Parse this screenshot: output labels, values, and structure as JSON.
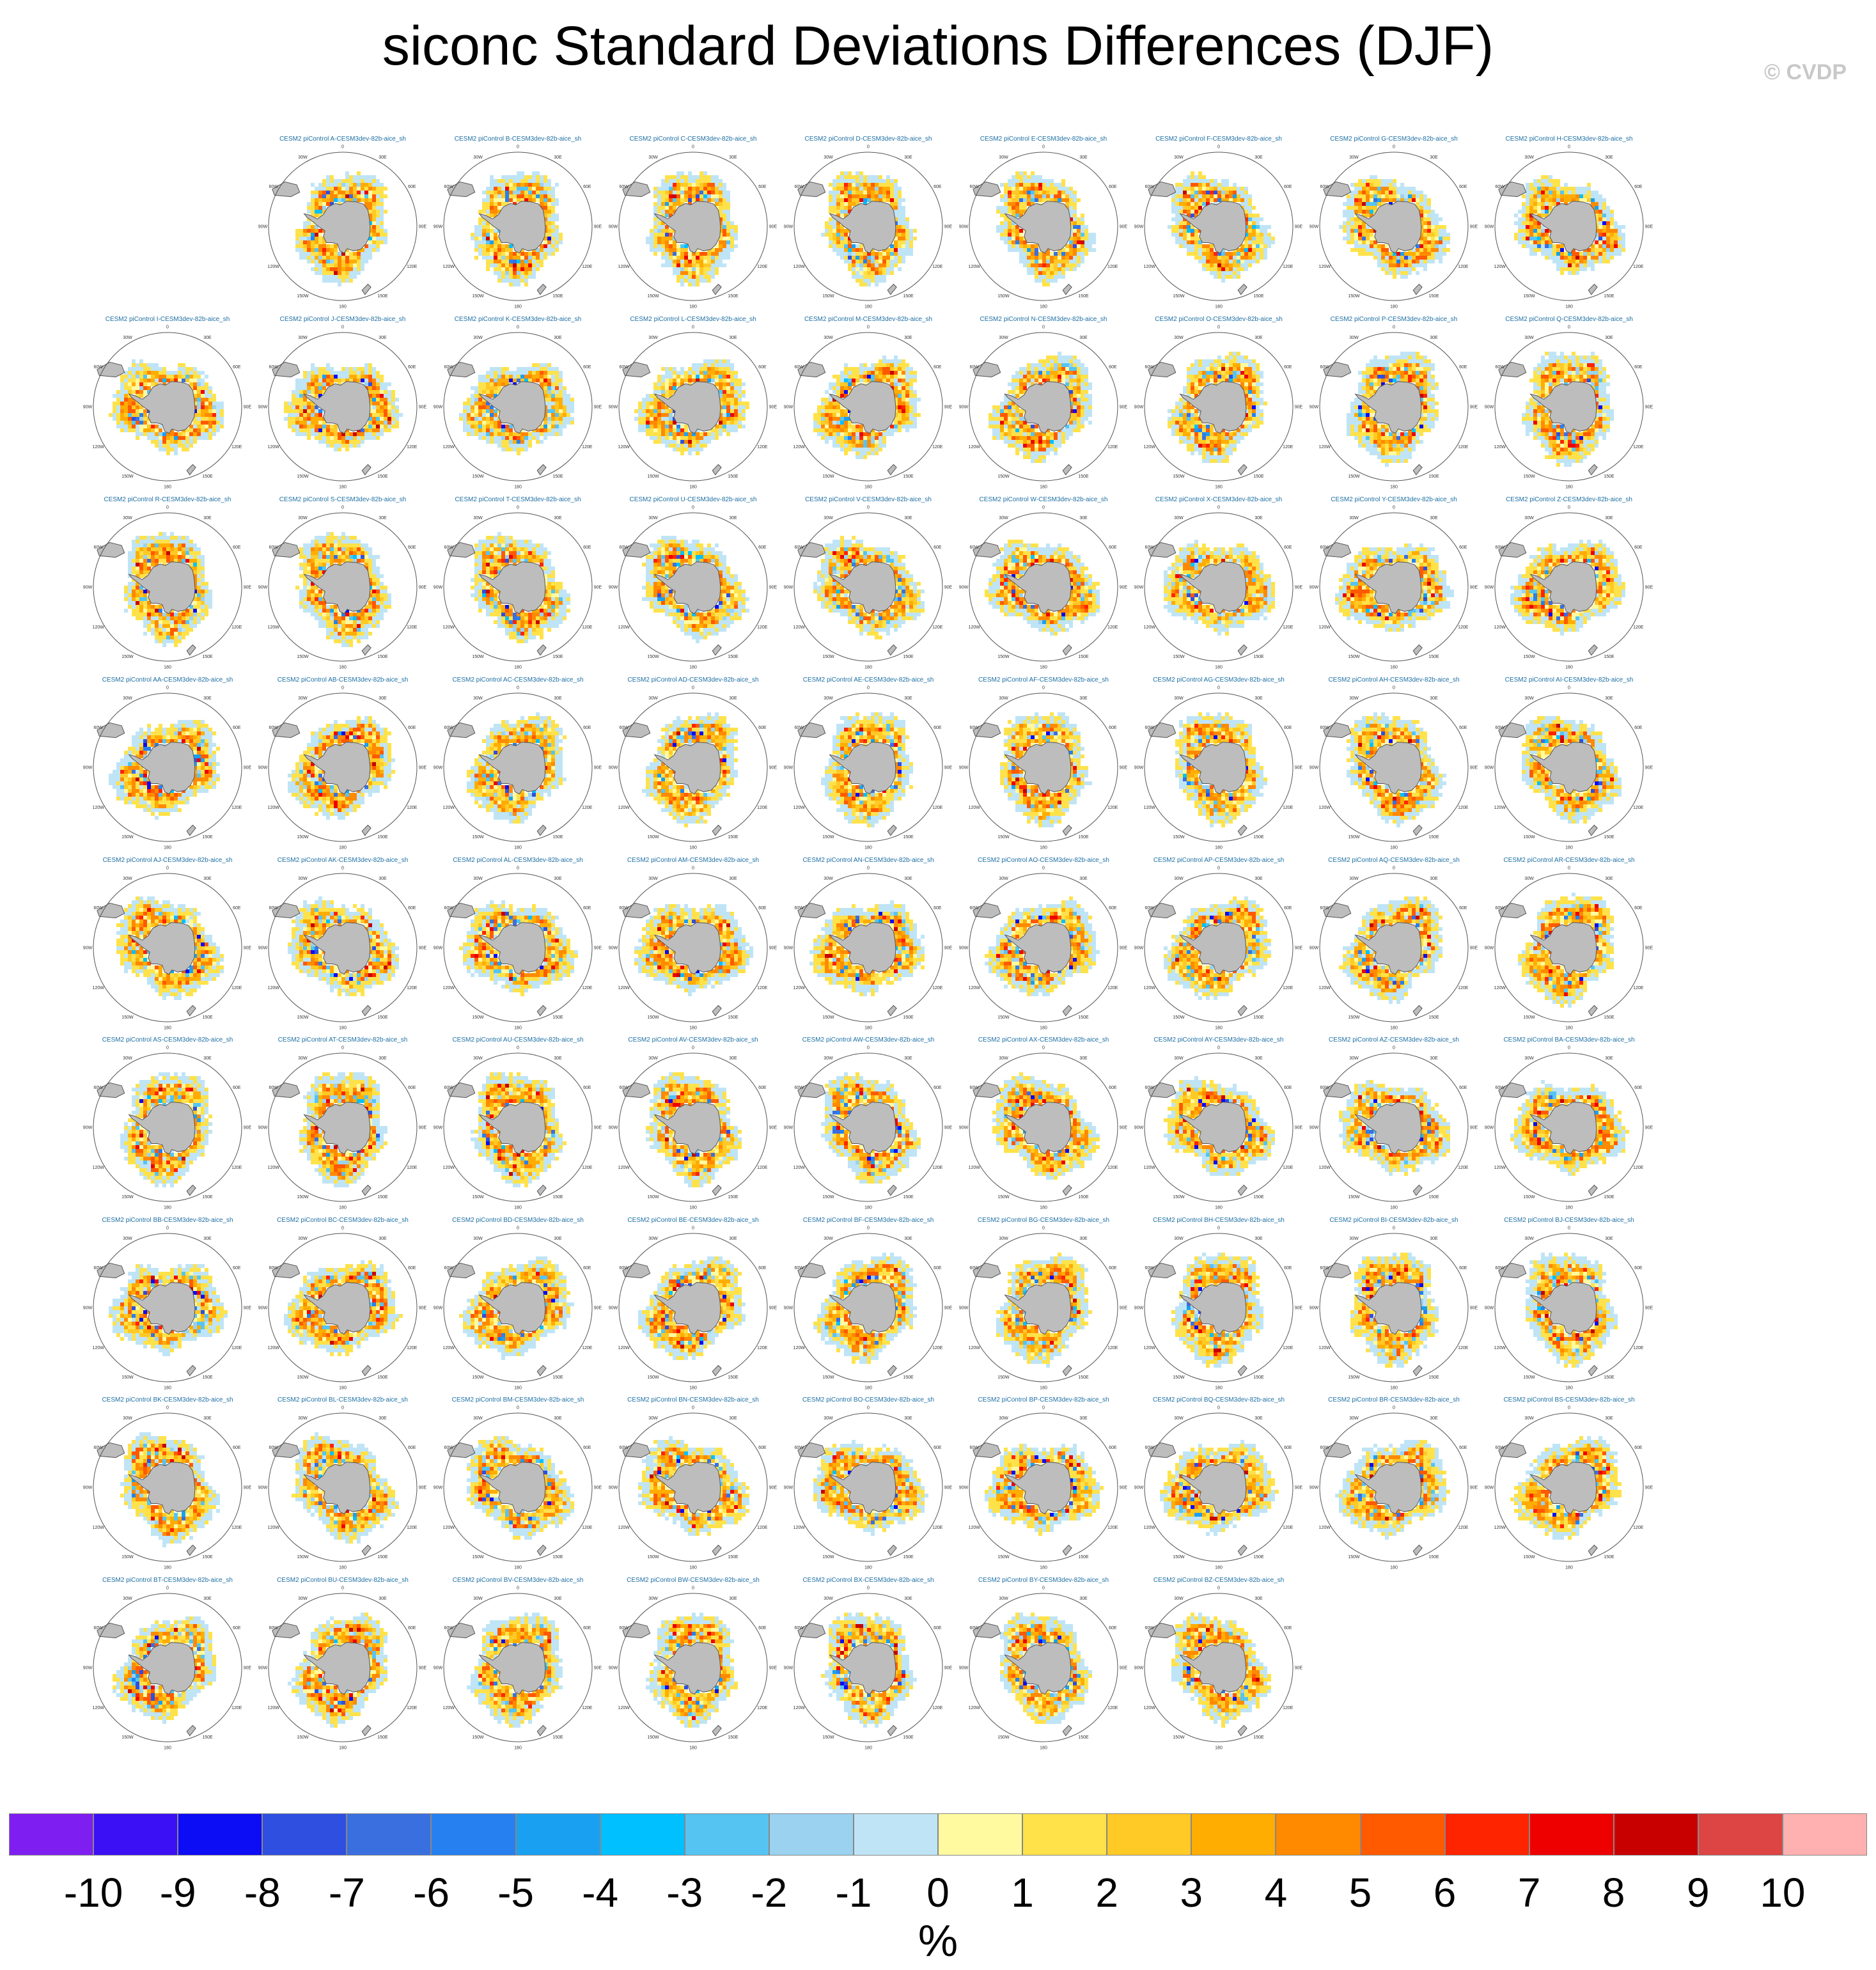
{
  "title": "siconc Standard Deviations Differences (DJF)",
  "watermark": "© CVDP",
  "chart_data": {
    "type": "heatmap",
    "title": "siconc Standard Deviations Differences (DJF)",
    "panel_prefix": "CESM2 piControl ",
    "panel_suffix": "-CESM3dev-82b-aice_sh",
    "panels": [
      "A",
      "B",
      "C",
      "D",
      "E",
      "F",
      "G",
      "H",
      "I",
      "J",
      "K",
      "L",
      "M",
      "N",
      "O",
      "P",
      "Q",
      "R",
      "S",
      "T",
      "U",
      "V",
      "W",
      "X",
      "Y",
      "Z",
      "AA",
      "AB",
      "AC",
      "AD",
      "AE",
      "AF",
      "AG",
      "AH",
      "AI",
      "AJ",
      "AK",
      "AL",
      "AM",
      "AN",
      "AO",
      "AP",
      "AQ",
      "AR",
      "AS",
      "AT",
      "AU",
      "AV",
      "AW",
      "AX",
      "AY",
      "AZ",
      "BA",
      "BB",
      "BC",
      "BD",
      "BE",
      "BF",
      "BG",
      "BH",
      "BI",
      "BJ",
      "BK",
      "BL",
      "BM",
      "BN",
      "BO",
      "BP",
      "BQ",
      "BR",
      "BS",
      "BT",
      "BU",
      "BV",
      "BW",
      "BX",
      "BY",
      "BZ"
    ],
    "longitude_labels": [
      "0",
      "30E",
      "60E",
      "90E",
      "120E",
      "150E",
      "180",
      "150W",
      "120W",
      "90W",
      "60W",
      "30W"
    ],
    "colorbar": {
      "units": "%",
      "tick_labels": [
        "-10",
        "-9",
        "-8",
        "-7",
        "-6",
        "-5",
        "-4",
        "-3",
        "-2",
        "-1",
        "0",
        "1",
        "2",
        "3",
        "4",
        "5",
        "6",
        "7",
        "8",
        "9",
        "10"
      ],
      "colors": [
        "#7f1ef0",
        "#3c10f5",
        "#0c0cf5",
        "#2e4fe0",
        "#3a6fe0",
        "#2680f0",
        "#1aa0f0",
        "#00c0ff",
        "#55c4f2",
        "#9ad2f0",
        "#bfe4f6",
        "#fffaa0",
        "#ffe24a",
        "#ffc926",
        "#ffad00",
        "#ff8a00",
        "#ff5a00",
        "#ff2400",
        "#ee0000",
        "#c80000",
        "#dd4444",
        "#ffb0b0"
      ]
    }
  }
}
